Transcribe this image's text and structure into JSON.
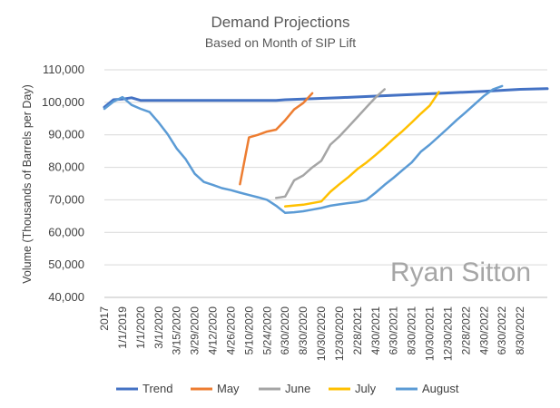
{
  "chart_data": {
    "type": "line",
    "title": "Demand Projections",
    "subtitle": "Based on Month of SIP Lift",
    "xlabel": "",
    "ylabel": "Volume (Thousands of Barrels per Day)",
    "ylim": [
      40000,
      110000
    ],
    "yticks": [
      "40,000",
      "50,000",
      "60,000",
      "70,000",
      "80,000",
      "90,000",
      "100,000",
      "110,000"
    ],
    "ytick_values": [
      40000,
      50000,
      60000,
      70000,
      80000,
      90000,
      100000,
      110000
    ],
    "x_categories": [
      "2017",
      "1/1/2019",
      "1/1/2020",
      "3/1/2020",
      "3/15/2020",
      "3/29/2020",
      "4/12/2020",
      "4/26/2020",
      "5/10/2020",
      "5/24/2020",
      "6/30/2020",
      "8/30/2020",
      "10/30/2020",
      "12/30/2020",
      "2/28/2021",
      "4/30/2021",
      "6/30/2021",
      "8/30/2021",
      "10/30/2021",
      "12/30/2021",
      "2/28/2022",
      "4/30/2022",
      "6/30/2022",
      "8/30/2022"
    ],
    "x_category_positions": [
      0,
      2,
      4,
      6,
      8,
      10,
      12,
      14,
      16,
      18,
      20,
      22,
      24,
      26,
      28,
      30,
      32,
      34,
      36,
      38,
      40,
      42,
      44,
      46
    ],
    "x_max_index": 49,
    "grid": "horizontal",
    "legend_placement": "bottom",
    "watermark": "Ryan Sitton",
    "series": [
      {
        "name": "Trend",
        "color": "#4472c4",
        "width": 3,
        "points": [
          [
            0,
            98500
          ],
          [
            1,
            100800
          ],
          [
            2,
            101000
          ],
          [
            3,
            101400
          ],
          [
            4,
            100600
          ],
          [
            10,
            100600
          ],
          [
            19,
            100600
          ],
          [
            20,
            100800
          ],
          [
            22,
            101000
          ],
          [
            26,
            101400
          ],
          [
            30,
            101900
          ],
          [
            34,
            102400
          ],
          [
            38,
            102900
          ],
          [
            42,
            103400
          ],
          [
            46,
            104000
          ],
          [
            49,
            104200
          ]
        ]
      },
      {
        "name": "May",
        "color": "#ed7d31",
        "width": 2.5,
        "points": [
          [
            15,
            74800
          ],
          [
            16,
            89200
          ],
          [
            17,
            90000
          ],
          [
            18,
            91000
          ],
          [
            19,
            91600
          ],
          [
            20,
            94500
          ],
          [
            21,
            97800
          ],
          [
            22,
            99800
          ],
          [
            23,
            102800
          ]
        ]
      },
      {
        "name": "June",
        "color": "#a5a5a5",
        "width": 2.5,
        "points": [
          [
            19,
            70600
          ],
          [
            20,
            71000
          ],
          [
            21,
            76000
          ],
          [
            22,
            77500
          ],
          [
            23,
            80000
          ],
          [
            24,
            82000
          ],
          [
            25,
            87000
          ],
          [
            26,
            89500
          ],
          [
            27,
            92500
          ],
          [
            28,
            95500
          ],
          [
            29,
            98500
          ],
          [
            30,
            101500
          ],
          [
            31,
            104000
          ]
        ]
      },
      {
        "name": "July",
        "color": "#ffc000",
        "width": 2.5,
        "points": [
          [
            20,
            68000
          ],
          [
            22,
            68500
          ],
          [
            24,
            69500
          ],
          [
            25,
            72500
          ],
          [
            26,
            74800
          ],
          [
            27,
            77000
          ],
          [
            28,
            79500
          ],
          [
            29,
            81500
          ],
          [
            30,
            83800
          ],
          [
            31,
            86200
          ],
          [
            32,
            88800
          ],
          [
            33,
            91200
          ],
          [
            34,
            93800
          ],
          [
            35,
            96500
          ],
          [
            36,
            99000
          ],
          [
            37,
            103200
          ]
        ]
      },
      {
        "name": "August",
        "color": "#5b9bd5",
        "width": 2.5,
        "points": [
          [
            0,
            98000
          ],
          [
            1,
            100200
          ],
          [
            2,
            101600
          ],
          [
            3,
            99200
          ],
          [
            4,
            98000
          ],
          [
            5,
            97000
          ],
          [
            6,
            93800
          ],
          [
            7,
            90200
          ],
          [
            8,
            85800
          ],
          [
            9,
            82500
          ],
          [
            10,
            78000
          ],
          [
            11,
            75500
          ],
          [
            12,
            74600
          ],
          [
            13,
            73600
          ],
          [
            14,
            73000
          ],
          [
            15,
            72200
          ],
          [
            16,
            71500
          ],
          [
            17,
            70800
          ],
          [
            18,
            70000
          ],
          [
            19,
            68200
          ],
          [
            20,
            66000
          ],
          [
            21,
            66200
          ],
          [
            22,
            66500
          ],
          [
            23,
            67000
          ],
          [
            24,
            67500
          ],
          [
            25,
            68200
          ],
          [
            26,
            68600
          ],
          [
            27,
            69000
          ],
          [
            28,
            69300
          ],
          [
            29,
            70000
          ],
          [
            30,
            72200
          ],
          [
            31,
            74600
          ],
          [
            32,
            76800
          ],
          [
            33,
            79200
          ],
          [
            34,
            81500
          ],
          [
            35,
            84800
          ],
          [
            36,
            87000
          ],
          [
            37,
            89500
          ],
          [
            38,
            92000
          ],
          [
            39,
            94600
          ],
          [
            40,
            97000
          ],
          [
            41,
            99500
          ],
          [
            42,
            102000
          ],
          [
            43,
            104000
          ],
          [
            44,
            105000
          ]
        ]
      }
    ]
  }
}
